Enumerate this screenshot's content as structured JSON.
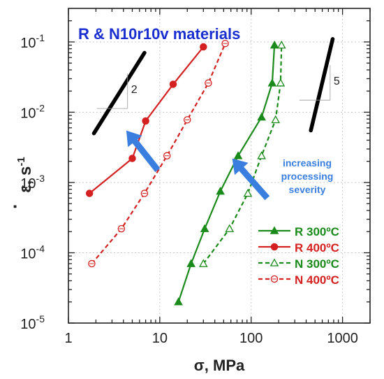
{
  "chart_data": {
    "type": "line",
    "title": "R & N10r10v materials",
    "xlabel": "σ, MPa",
    "ylabel_base": "ε",
    "ylabel_dot": "·",
    "ylabel_unit": ", s",
    "ylabel_exp": "-1",
    "x_scale": "log",
    "y_scale": "log",
    "xlim": [
      1,
      2000
    ],
    "ylim": [
      1e-05,
      0.3
    ],
    "x_ticks": [
      {
        "value": 1,
        "label": "1"
      },
      {
        "value": 10,
        "label": "10"
      },
      {
        "value": 100,
        "label": "100"
      },
      {
        "value": 1000,
        "label": "1000"
      }
    ],
    "y_ticks": [
      {
        "value": 1e-05,
        "base": "10",
        "exp": "-5"
      },
      {
        "value": 0.0001,
        "base": "10",
        "exp": "-4"
      },
      {
        "value": 0.001,
        "base": "10",
        "exp": "-3"
      },
      {
        "value": 0.01,
        "base": "10",
        "exp": "-2"
      },
      {
        "value": 0.1,
        "base": "10",
        "exp": "-1"
      }
    ],
    "grid": true,
    "legend_position": "bottom-right",
    "series": [
      {
        "name": "R 300ºC",
        "color": "#1a8a1a",
        "dash": "solid",
        "marker": "triangle",
        "filled": true,
        "x": [
          16,
          22,
          31,
          46,
          72,
          130,
          170,
          180
        ],
        "y": [
          2e-05,
          7e-05,
          0.00022,
          0.00075,
          0.0024,
          0.0085,
          0.026,
          0.09
        ]
      },
      {
        "name": "R 400ºC",
        "color": "#d42020",
        "dash": "solid",
        "marker": "circle",
        "filled": true,
        "x": [
          1.7,
          5,
          7,
          14,
          30
        ],
        "y": [
          0.0007,
          0.0022,
          0.0075,
          0.025,
          0.085
        ]
      },
      {
        "name": "N 300ºC",
        "color": "#1a8a1a",
        "dash": "dashed",
        "marker": "triangle",
        "filled": false,
        "x": [
          30,
          58,
          92,
          130,
          185,
          210,
          215
        ],
        "y": [
          7e-05,
          0.00022,
          0.0007,
          0.0024,
          0.0078,
          0.026,
          0.09
        ]
      },
      {
        "name": "N 400ºC",
        "color": "#d42020",
        "dash": "dashed",
        "marker": "circle",
        "filled": false,
        "x": [
          1.8,
          3.8,
          6.8,
          12,
          20,
          34,
          52
        ],
        "y": [
          7e-05,
          0.00022,
          0.0007,
          0.0024,
          0.0078,
          0.026,
          0.095
        ]
      }
    ],
    "slope_indicators": [
      {
        "label": "2",
        "x": [
          1.9,
          6.8
        ],
        "y": [
          0.005,
          0.07
        ]
      },
      {
        "label": "5",
        "x": [
          450,
          780
        ],
        "y": [
          0.0055,
          0.11
        ]
      }
    ],
    "annotation": {
      "lines": [
        "increasing",
        "processing",
        "severity"
      ],
      "color": "#3a7fe0"
    },
    "arrows": [
      {
        "from": [
          9.5,
          0.0015
        ],
        "to": [
          4.3,
          0.0055
        ]
      },
      {
        "from": [
          150,
          0.0006
        ],
        "to": [
          62,
          0.0022
        ]
      }
    ],
    "colors": {
      "title": "#1a2fcf",
      "arrow": "#3a7fe0",
      "grid": "#c8c8c8",
      "axis": "#222222"
    }
  }
}
